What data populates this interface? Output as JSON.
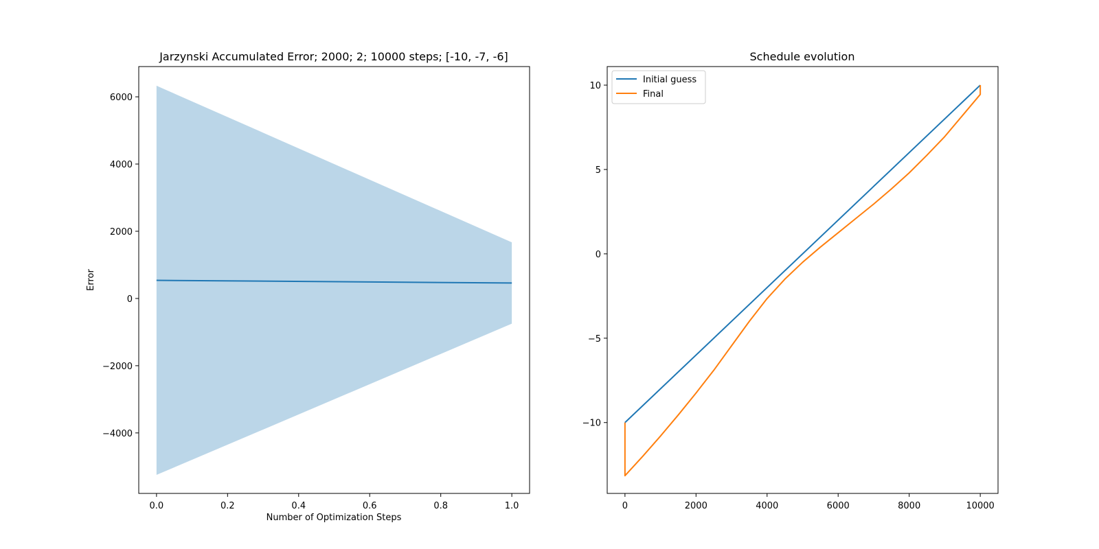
{
  "chart_data": [
    {
      "type": "line",
      "title": "Jarzynski Accumulated Error; 2000; 2; 10000 steps; [-10, -7, -6]",
      "xlabel": "Number of Optimization Steps",
      "ylabel": "Error",
      "xlim": [
        -0.05,
        1.05
      ],
      "ylim": [
        -5800,
        6900
      ],
      "xticks": [
        0.0,
        0.2,
        0.4,
        0.6,
        0.8,
        1.0
      ],
      "xtick_labels": [
        "0.0",
        "0.2",
        "0.4",
        "0.6",
        "0.8",
        "1.0"
      ],
      "yticks": [
        -4000,
        -2000,
        0,
        2000,
        4000,
        6000
      ],
      "ytick_labels": [
        "−4000",
        "−2000",
        "0",
        "2000",
        "4000",
        "6000"
      ],
      "series": [
        {
          "x": [
            0,
            1
          ],
          "y": [
            540,
            460
          ],
          "color": "#1f77b4"
        }
      ],
      "band": {
        "x": [
          0,
          1
        ],
        "upper": [
          6330,
          1670
        ],
        "lower": [
          -5250,
          -750
        ],
        "color": "#1f77b4",
        "opacity": 0.3
      },
      "grid": false,
      "legend": null
    },
    {
      "type": "line",
      "title": "Schedule evolution",
      "xlabel": "",
      "ylabel": "",
      "xlim": [
        -500,
        10500
      ],
      "ylim": [
        -14.2,
        11.1
      ],
      "xticks": [
        0,
        2000,
        4000,
        6000,
        8000,
        10000
      ],
      "xtick_labels": [
        "0",
        "2000",
        "4000",
        "6000",
        "8000",
        "10000"
      ],
      "yticks": [
        -10,
        -5,
        0,
        5,
        10
      ],
      "ytick_labels": [
        "−10",
        "−5",
        "0",
        "5",
        "10"
      ],
      "series": [
        {
          "name": "Initial guess",
          "color": "#1f77b4",
          "x": [
            0,
            0,
            10000,
            10000
          ],
          "y": [
            -10,
            -10,
            10,
            10
          ]
        },
        {
          "name": "Final",
          "color": "#ff7f0e",
          "x": [
            0,
            0,
            500,
            1000,
            1500,
            2000,
            2500,
            3000,
            3500,
            4000,
            4500,
            5000,
            5500,
            6000,
            6500,
            7000,
            7500,
            8000,
            8500,
            9000,
            9500,
            10000,
            10000
          ],
          "y": [
            -10,
            -13.15,
            -12.0,
            -10.8,
            -9.55,
            -8.25,
            -6.9,
            -5.45,
            -4.0,
            -2.65,
            -1.5,
            -0.5,
            0.4,
            1.25,
            2.1,
            2.95,
            3.85,
            4.8,
            5.85,
            6.95,
            8.2,
            9.45,
            10
          ]
        }
      ],
      "grid": false,
      "legend": "top-left"
    }
  ]
}
